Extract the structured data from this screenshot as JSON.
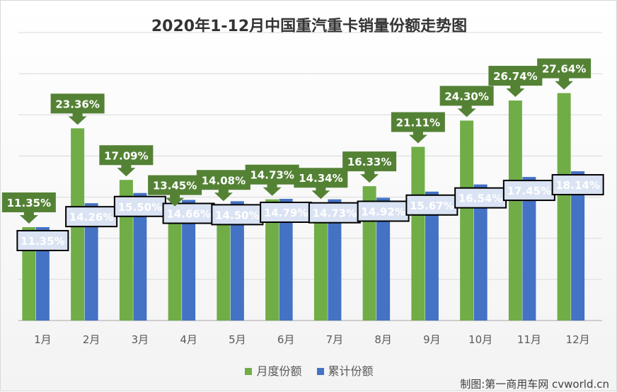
{
  "chart_data": {
    "type": "bar",
    "title": "2020年1-12月中国重汽重卡销量份额走势图",
    "categories": [
      "1月",
      "2月",
      "3月",
      "4月",
      "5月",
      "6月",
      "7月",
      "8月",
      "9月",
      "10月",
      "11月",
      "12月"
    ],
    "series": [
      {
        "name": "月度份额",
        "color": "#70ad47",
        "values": [
          11.35,
          23.36,
          17.09,
          13.45,
          14.08,
          14.73,
          14.34,
          16.33,
          21.11,
          24.3,
          26.74,
          27.64
        ],
        "labels": [
          "11.35%",
          "23.36%",
          "17.09%",
          "13.45%",
          "14.08%",
          "14.73%",
          "14.34%",
          "16.33%",
          "21.11%",
          "24.30%",
          "26.74%",
          "27.64%"
        ]
      },
      {
        "name": "累计份额",
        "color": "#4472c4",
        "values": [
          11.35,
          14.26,
          15.5,
          14.66,
          14.5,
          14.79,
          14.73,
          14.92,
          15.67,
          16.54,
          17.45,
          18.14
        ],
        "labels": [
          "11.35%",
          "14.26%",
          "15.50%",
          "14.66%",
          "14.50%",
          "14.79%",
          "14.73%",
          "14.92%",
          "15.67%",
          "16.54%",
          "17.45%",
          "18.14%"
        ]
      }
    ],
    "ylim": [
      0,
      35
    ],
    "grid": true,
    "legend_position": "bottom",
    "colors": {
      "monthly_callout": "#548235",
      "cumulative_callout": "#dae3f3",
      "gridline": "#d9d9d9"
    }
  },
  "credit": "制图:第一商用车网 cvworld.cn"
}
